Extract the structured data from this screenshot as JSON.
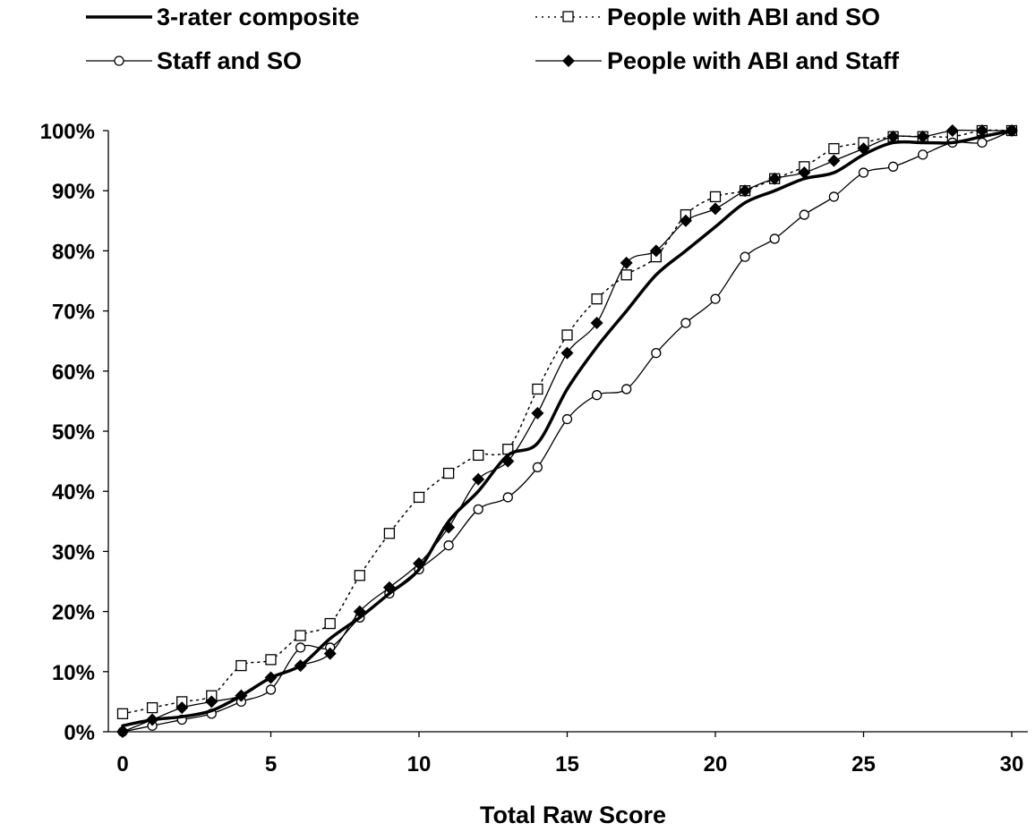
{
  "chart_data": {
    "type": "line",
    "title": "",
    "xlabel": "Total Raw Score",
    "ylabel": "",
    "xlim": [
      0,
      30
    ],
    "ylim": [
      0,
      100
    ],
    "x_ticks": [
      0,
      5,
      10,
      15,
      20,
      25,
      30
    ],
    "y_ticks": [
      0,
      10,
      20,
      30,
      40,
      50,
      60,
      70,
      80,
      90,
      100
    ],
    "y_tick_labels": [
      "0%",
      "10%",
      "20%",
      "30%",
      "40%",
      "50%",
      "60%",
      "70%",
      "80%",
      "90%",
      "100%"
    ],
    "grid": false,
    "legend_position": "top",
    "series": [
      {
        "name": "3-rater composite",
        "style": "solid-thick",
        "marker": "none",
        "points": [
          [
            0,
            1
          ],
          [
            1,
            2
          ],
          [
            2,
            2.5
          ],
          [
            3,
            3.5
          ],
          [
            4,
            6
          ],
          [
            5,
            9
          ],
          [
            6,
            11
          ],
          [
            7,
            15.5
          ],
          [
            8,
            19
          ],
          [
            9,
            23
          ],
          [
            10,
            27
          ],
          [
            11,
            35
          ],
          [
            12,
            40
          ],
          [
            13,
            46
          ],
          [
            14,
            48
          ],
          [
            15,
            57
          ],
          [
            16,
            64
          ],
          [
            17,
            70
          ],
          [
            18,
            76
          ],
          [
            19,
            80
          ],
          [
            20,
            84
          ],
          [
            21,
            88
          ],
          [
            22,
            90
          ],
          [
            23,
            92
          ],
          [
            24,
            93
          ],
          [
            25,
            96
          ],
          [
            26,
            98
          ],
          [
            27,
            98
          ],
          [
            28,
            98
          ],
          [
            29,
            99
          ],
          [
            30,
            100
          ]
        ]
      },
      {
        "name": "People with ABI and SO",
        "style": "dotted",
        "marker": "open-square",
        "points": [
          [
            0,
            3
          ],
          [
            1,
            4
          ],
          [
            2,
            5
          ],
          [
            3,
            6
          ],
          [
            4,
            11
          ],
          [
            5,
            12
          ],
          [
            6,
            16
          ],
          [
            7,
            18
          ],
          [
            8,
            26
          ],
          [
            9,
            33
          ],
          [
            10,
            39
          ],
          [
            11,
            43
          ],
          [
            12,
            46
          ],
          [
            13,
            47
          ],
          [
            14,
            57
          ],
          [
            15,
            66
          ],
          [
            16,
            72
          ],
          [
            17,
            76
          ],
          [
            18,
            79
          ],
          [
            19,
            86
          ],
          [
            20,
            89
          ],
          [
            21,
            90
          ],
          [
            22,
            92
          ],
          [
            23,
            94
          ],
          [
            24,
            97
          ],
          [
            25,
            98
          ],
          [
            26,
            99
          ],
          [
            27,
            99
          ],
          [
            28,
            99
          ],
          [
            29,
            100
          ],
          [
            30,
            100
          ]
        ]
      },
      {
        "name": "Staff and SO",
        "style": "solid-thin",
        "marker": "open-circle",
        "points": [
          [
            0,
            0
          ],
          [
            1,
            1
          ],
          [
            2,
            2
          ],
          [
            3,
            3
          ],
          [
            4,
            5
          ],
          [
            5,
            7
          ],
          [
            6,
            14
          ],
          [
            7,
            14
          ],
          [
            8,
            19
          ],
          [
            9,
            23
          ],
          [
            10,
            27
          ],
          [
            11,
            31
          ],
          [
            12,
            37
          ],
          [
            13,
            39
          ],
          [
            14,
            44
          ],
          [
            15,
            52
          ],
          [
            16,
            56
          ],
          [
            17,
            57
          ],
          [
            18,
            63
          ],
          [
            19,
            68
          ],
          [
            20,
            72
          ],
          [
            21,
            79
          ],
          [
            22,
            82
          ],
          [
            23,
            86
          ],
          [
            24,
            89
          ],
          [
            25,
            93
          ],
          [
            26,
            94
          ],
          [
            27,
            96
          ],
          [
            28,
            98
          ],
          [
            29,
            98
          ],
          [
            30,
            100
          ]
        ]
      },
      {
        "name": "People with ABI and Staff",
        "style": "solid-thin",
        "marker": "filled-diamond",
        "points": [
          [
            0,
            0
          ],
          [
            1,
            2
          ],
          [
            2,
            4
          ],
          [
            3,
            5
          ],
          [
            4,
            6
          ],
          [
            5,
            9
          ],
          [
            6,
            11
          ],
          [
            7,
            13
          ],
          [
            8,
            20
          ],
          [
            9,
            24
          ],
          [
            10,
            28
          ],
          [
            11,
            34
          ],
          [
            12,
            42
          ],
          [
            13,
            45
          ],
          [
            14,
            53
          ],
          [
            15,
            63
          ],
          [
            16,
            68
          ],
          [
            17,
            78
          ],
          [
            18,
            80
          ],
          [
            19,
            85
          ],
          [
            20,
            87
          ],
          [
            21,
            90
          ],
          [
            22,
            92
          ],
          [
            23,
            93
          ],
          [
            24,
            95
          ],
          [
            25,
            97
          ],
          [
            26,
            99
          ],
          [
            27,
            99
          ],
          [
            28,
            100
          ],
          [
            29,
            100
          ],
          [
            30,
            100
          ]
        ]
      }
    ]
  }
}
